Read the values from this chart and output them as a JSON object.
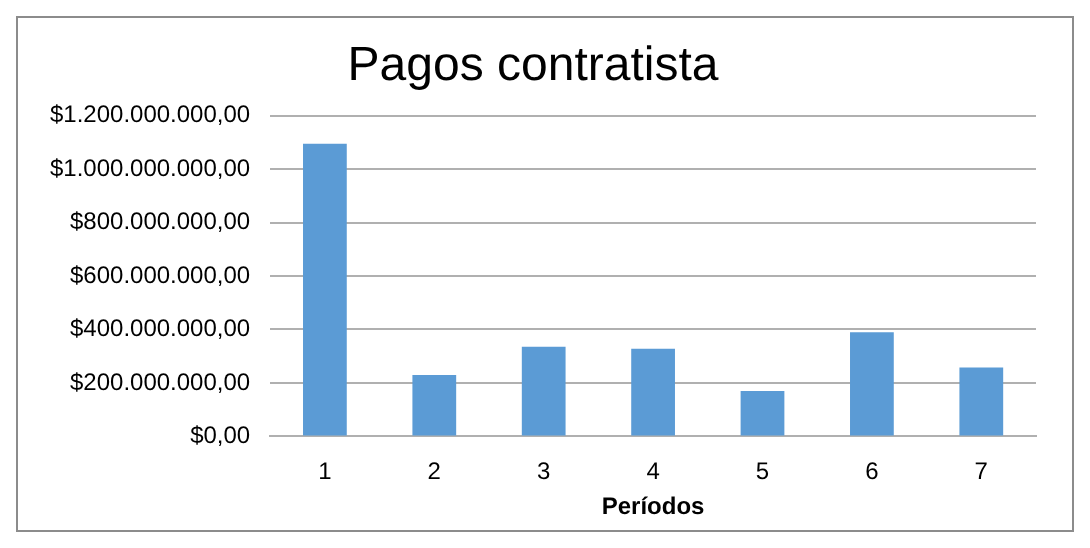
{
  "chart_data": {
    "type": "bar",
    "title": "Pagos contratista",
    "xlabel": "Períodos",
    "categories": [
      "1",
      "2",
      "3",
      "4",
      "5",
      "6",
      "7"
    ],
    "values": [
      1095000000,
      230000000,
      335000000,
      328000000,
      170000000,
      390000000,
      258000000
    ],
    "color": "#5b9bd5",
    "ylim": [
      0,
      1200000000
    ],
    "yticks": [
      {
        "value": 0,
        "label": "$0,00"
      },
      {
        "value": 200000000,
        "label": "$200.000.000,00"
      },
      {
        "value": 400000000,
        "label": "$400.000.000,00"
      },
      {
        "value": 600000000,
        "label": "$600.000.000,00"
      },
      {
        "value": 800000000,
        "label": "$800.000.000,00"
      },
      {
        "value": 1000000000,
        "label": "$1.000.000.000,00"
      },
      {
        "value": 1200000000,
        "label": "$1.200.000.000,00"
      }
    ],
    "grid": "y",
    "legend": false
  }
}
